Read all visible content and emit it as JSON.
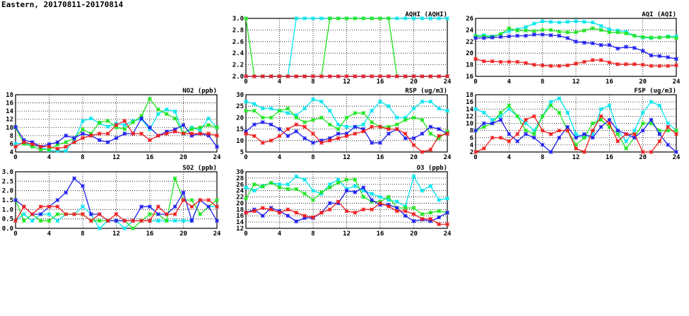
{
  "header": "Eastern, 20170811-20170814",
  "colors": {
    "cyan": "#00e5ee",
    "green": "#1ee51e",
    "blue": "#1e1eee",
    "red": "#ee1e1e"
  },
  "chart_data": [
    {
      "id": "aqhi",
      "type": "line",
      "title": "AQHI (AQHI)",
      "xlim": [
        0,
        24
      ],
      "xticks": [
        0,
        4,
        8,
        12,
        16,
        20,
        24
      ],
      "ylim": [
        2,
        3
      ],
      "yticks": [
        "2.0",
        "2.2",
        "2.4",
        "2.6",
        "2.8",
        "3.0"
      ],
      "grid": true,
      "series": [
        {
          "color": "cyan",
          "values": [
            2,
            2,
            2,
            2,
            2,
            2,
            3,
            3,
            3,
            3,
            3,
            3,
            3,
            3,
            3,
            3,
            3,
            3,
            3,
            3,
            3,
            3,
            3,
            3,
            3
          ]
        },
        {
          "color": "green",
          "values": [
            3,
            2,
            2,
            2,
            2,
            2,
            2,
            2,
            2,
            2,
            3,
            3,
            3,
            3,
            3,
            3,
            3,
            3,
            2,
            2,
            2,
            2,
            2,
            2,
            2
          ]
        },
        {
          "color": "blue",
          "values": [
            2,
            2,
            2,
            2,
            2,
            2,
            2,
            2,
            2,
            2,
            2,
            2,
            2,
            2,
            2,
            2,
            2,
            2,
            2,
            2,
            2,
            2,
            2,
            2,
            2
          ]
        },
        {
          "color": "red",
          "values": [
            2,
            2,
            2,
            2,
            2,
            2,
            2,
            2,
            2,
            2,
            2,
            2,
            2,
            2,
            2,
            2,
            2,
            2,
            2,
            2,
            2,
            2,
            2,
            2,
            2
          ]
        }
      ]
    },
    {
      "id": "aqi",
      "type": "line",
      "title": "AQI (AQI)",
      "xlim": [
        0,
        24
      ],
      "xticks": [
        0,
        4,
        8,
        12,
        16,
        20,
        24
      ],
      "ylim": [
        16,
        26
      ],
      "yticks": [
        "16",
        "18",
        "20",
        "22",
        "24",
        "26"
      ],
      "grid": true,
      "series": [
        {
          "color": "cyan",
          "values": [
            23,
            23.1,
            22.9,
            23.3,
            23.8,
            24.1,
            24.5,
            25.1,
            25.5,
            25.4,
            25.3,
            25.4,
            25.5,
            25.4,
            25.3,
            24.7,
            24.1,
            23.9,
            23.7,
            23,
            22.7,
            22.6,
            22.7,
            22.9,
            22.9
          ]
        },
        {
          "color": "green",
          "values": [
            22.9,
            22.9,
            22.8,
            23.3,
            24.3,
            23.9,
            23.9,
            23.8,
            24,
            24,
            23.7,
            23.6,
            23.6,
            23.9,
            24.3,
            24,
            23.6,
            23.6,
            23.4,
            23,
            22.8,
            22.7,
            22.7,
            22.8,
            22.6
          ]
        },
        {
          "color": "blue",
          "values": [
            22.6,
            22.6,
            22.7,
            22.8,
            22.9,
            23,
            23,
            23.2,
            23.2,
            23.1,
            23,
            22.6,
            22,
            21.8,
            21.7,
            21.4,
            21.4,
            20.8,
            21.1,
            20.9,
            20.4,
            19.6,
            19.5,
            19.3,
            19
          ]
        },
        {
          "color": "red",
          "values": [
            19,
            18.6,
            18.6,
            18.5,
            18.5,
            18.5,
            18.3,
            18,
            17.9,
            17.8,
            17.8,
            17.9,
            18.2,
            18.5,
            18.8,
            18.8,
            18.4,
            18.1,
            18.1,
            18.1,
            18,
            17.8,
            17.8,
            17.8,
            17.9
          ]
        }
      ]
    },
    {
      "id": "no2",
      "type": "line",
      "title": "NO2 (ppb)",
      "xlim": [
        0,
        24
      ],
      "xticks": [
        0,
        4,
        8,
        12,
        16,
        20,
        24
      ],
      "ylim": [
        4,
        18
      ],
      "yticks": [
        "4",
        "6",
        "8",
        "10",
        "12",
        "14",
        "16",
        "18"
      ],
      "grid": true,
      "series": [
        {
          "color": "cyan",
          "values": [
            6,
            6.2,
            5.7,
            5.2,
            4.4,
            4.3,
            4.3,
            7,
            11.6,
            12.2,
            11,
            10.2,
            11,
            10.6,
            11.6,
            12,
            9.6,
            13.3,
            14.4,
            13.9,
            8.4,
            10,
            9.3,
            12.2,
            10
          ]
        },
        {
          "color": "green",
          "values": [
            10,
            6,
            5.3,
            4.6,
            4.6,
            5.8,
            6.4,
            7.4,
            9.5,
            8.5,
            11.2,
            11.6,
            10,
            9.6,
            11.3,
            12.8,
            17,
            14.4,
            13.3,
            12.2,
            8.6,
            9.6,
            10,
            10.6,
            10
          ]
        },
        {
          "color": "blue",
          "values": [
            10.1,
            6.9,
            6.4,
            5.3,
            5.9,
            6.4,
            8,
            7.4,
            8.5,
            8,
            6.9,
            6.4,
            7.4,
            8.5,
            8.5,
            12.2,
            10,
            8,
            9,
            9.5,
            10.6,
            8,
            8.5,
            8,
            5.3
          ]
        },
        {
          "color": "red",
          "values": [
            5.3,
            6.4,
            5.9,
            5.3,
            5.3,
            4.8,
            5.3,
            6.4,
            7.4,
            8,
            8.5,
            8.5,
            10.6,
            11.6,
            8.5,
            8.5,
            6.9,
            8,
            8.5,
            9,
            8.5,
            8.5,
            8.5,
            8.5,
            8
          ]
        }
      ]
    },
    {
      "id": "rsp",
      "type": "line",
      "title": "RSP (ug/m3)",
      "xlim": [
        0,
        24
      ],
      "xticks": [
        0,
        4,
        8,
        12,
        16,
        20,
        24
      ],
      "ylim": [
        5,
        30
      ],
      "yticks": [
        "5",
        "10",
        "15",
        "20",
        "25",
        "30"
      ],
      "grid": true,
      "series": [
        {
          "color": "cyan",
          "values": [
            27,
            26,
            24,
            24,
            23,
            22,
            21,
            24,
            28,
            27,
            23,
            17,
            16,
            16,
            17,
            23,
            27,
            25,
            20,
            20,
            24,
            27,
            27,
            24,
            23
          ]
        },
        {
          "color": "green",
          "values": [
            23,
            23,
            20,
            20,
            23,
            24,
            20,
            18,
            19,
            20,
            17,
            15,
            20,
            22,
            22,
            18,
            16,
            16,
            17,
            19,
            20,
            19,
            13,
            11,
            14
          ]
        },
        {
          "color": "blue",
          "values": [
            14,
            17,
            18,
            17,
            15,
            12,
            14,
            11,
            9,
            10,
            11,
            13,
            13,
            16,
            15,
            9,
            9,
            13,
            15,
            11,
            11,
            13,
            16,
            15,
            13
          ]
        },
        {
          "color": "red",
          "values": [
            13,
            12,
            9,
            10,
            12,
            15,
            17,
            16,
            13,
            9,
            10,
            11,
            12,
            13,
            14,
            16,
            16,
            15,
            15,
            13,
            8,
            5,
            6,
            12,
            13
          ]
        }
      ]
    },
    {
      "id": "fsp",
      "type": "line",
      "title": "FSP (ug/m3)",
      "xlim": [
        0,
        24
      ],
      "xticks": [
        0,
        4,
        8,
        12,
        16,
        20,
        24
      ],
      "ylim": [
        2,
        18
      ],
      "yticks": [
        "2",
        "4",
        "6",
        "8",
        "10",
        "12",
        "14",
        "16",
        "18"
      ],
      "grid": true,
      "series": [
        {
          "color": "cyan",
          "values": [
            14,
            13,
            11,
            12,
            14,
            12,
            10,
            8,
            12,
            16,
            17,
            13,
            7,
            6,
            7,
            14,
            15,
            8,
            5,
            8,
            13,
            16,
            15,
            10,
            8
          ]
        },
        {
          "color": "green",
          "values": [
            8,
            9,
            10,
            13,
            15,
            12,
            8,
            7,
            12,
            15,
            13,
            8,
            4,
            6,
            10,
            11,
            9,
            7,
            3,
            6,
            10,
            10,
            8,
            8,
            8
          ]
        },
        {
          "color": "blue",
          "values": [
            8,
            10,
            10,
            11,
            7,
            5,
            7,
            6,
            4,
            2,
            6,
            9,
            6,
            7,
            6,
            9,
            11,
            8,
            7,
            6,
            8,
            11,
            7,
            4,
            2
          ]
        },
        {
          "color": "red",
          "values": [
            2,
            3,
            6,
            6,
            5,
            7,
            11,
            12,
            8,
            7,
            8,
            8,
            3,
            2,
            8,
            12,
            10,
            5,
            7,
            7,
            2,
            2,
            5,
            9,
            7
          ]
        }
      ]
    },
    {
      "id": "so2",
      "type": "line",
      "title": "SO2 (ppb)",
      "xlim": [
        0,
        24
      ],
      "xticks": [
        0,
        4,
        8,
        12,
        16,
        20,
        24
      ],
      "ylim": [
        0,
        3
      ],
      "yticks": [
        "0.0",
        "0.5",
        "1.0",
        "1.5",
        "2.0",
        "2.5",
        "3.0"
      ],
      "grid": true,
      "series": [
        {
          "color": "cyan",
          "values": [
            0.4,
            0.75,
            0.4,
            0.75,
            0.75,
            0.4,
            0.75,
            0.75,
            1.15,
            0.75,
            0,
            0.4,
            0.4,
            0,
            0.4,
            0.4,
            0.4,
            0.4,
            0.4,
            0.4,
            0.4,
            0.4,
            1.5,
            1.15,
            1.15
          ]
        },
        {
          "color": "green",
          "values": [
            1.5,
            0.4,
            0.75,
            0.4,
            0.4,
            0.75,
            0.75,
            0.75,
            0.75,
            0.4,
            0.4,
            0.4,
            0.4,
            0.4,
            0,
            0.4,
            0.75,
            0.75,
            0.4,
            2.65,
            1.5,
            1.5,
            0.75,
            1.15,
            1.5
          ]
        },
        {
          "color": "blue",
          "values": [
            1.5,
            1.15,
            0.75,
            0.75,
            1.15,
            1.5,
            1.9,
            2.65,
            2.25,
            0.75,
            0.75,
            0.4,
            0.4,
            0.4,
            0.4,
            1.15,
            1.15,
            0.75,
            0.75,
            1.15,
            1.9,
            0.4,
            1.5,
            1.15,
            0.4
          ]
        },
        {
          "color": "red",
          "values": [
            0.4,
            1.15,
            0.75,
            1.15,
            1.15,
            1.15,
            0.75,
            0.75,
            0.75,
            0.4,
            0.75,
            0.4,
            0.75,
            0.4,
            0.4,
            0.4,
            0.4,
            1.15,
            0.75,
            0.75,
            1.5,
            1.15,
            1.5,
            1.5,
            1.15
          ]
        }
      ]
    },
    {
      "id": "o3",
      "type": "line",
      "title": "O3 (ppb)",
      "xlim": [
        0,
        24
      ],
      "xticks": [
        0,
        4,
        8,
        12,
        16,
        20,
        24
      ],
      "ylim": [
        12,
        30
      ],
      "yticks": [
        "12",
        "14",
        "16",
        "18",
        "20",
        "22",
        "24",
        "26",
        "28",
        "30"
      ],
      "grid": true,
      "series": [
        {
          "color": "cyan",
          "values": [
            25,
            24,
            25.5,
            26.5,
            26,
            26,
            28.5,
            27.5,
            24,
            23,
            26,
            27.5,
            24.5,
            25.5,
            24,
            23,
            22,
            21,
            20.5,
            19,
            28.5,
            24,
            25.5,
            21,
            21.5
          ]
        },
        {
          "color": "green",
          "values": [
            21.5,
            26,
            25.3,
            26.5,
            25,
            24.5,
            24.5,
            23,
            21,
            23.5,
            25,
            26.5,
            27.5,
            27.5,
            22,
            20.5,
            20.5,
            22,
            18.5,
            18.5,
            18.5,
            16.5,
            17,
            17.5,
            17
          ]
        },
        {
          "color": "blue",
          "values": [
            17,
            18,
            16,
            18.5,
            17.5,
            16,
            14.2,
            15.3,
            15.3,
            17,
            20,
            20,
            24,
            23.5,
            25,
            21,
            19.5,
            19.5,
            18.5,
            16,
            14.3,
            14.8,
            14.3,
            15.5,
            17
          ]
        },
        {
          "color": "red",
          "values": [
            17,
            17.5,
            18.5,
            18,
            17,
            18,
            17,
            16,
            15.5,
            17,
            18,
            20.5,
            17.5,
            17,
            18,
            18,
            20,
            19,
            17.5,
            17.5,
            16.5,
            15,
            15,
            13.3,
            13.3
          ]
        }
      ]
    }
  ]
}
